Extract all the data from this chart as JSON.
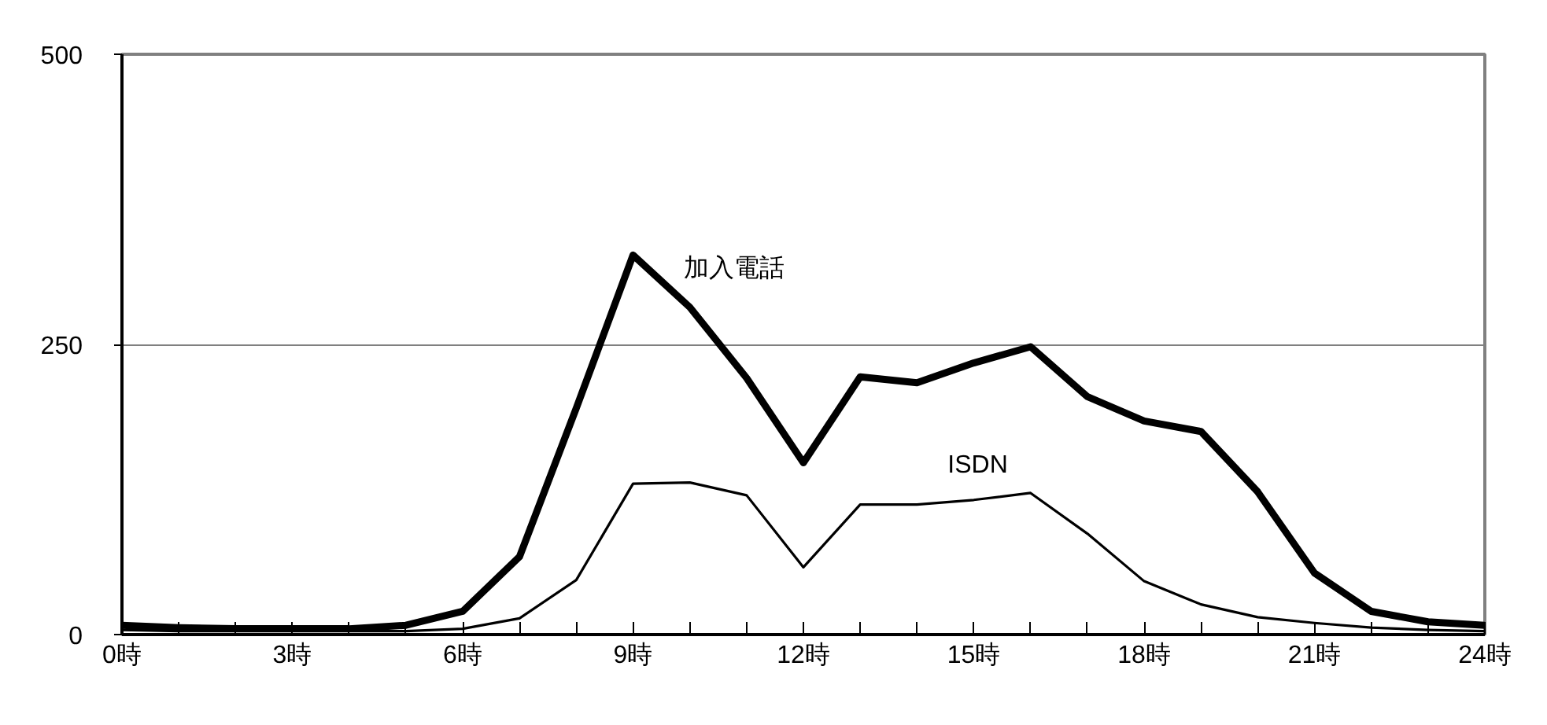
{
  "chart_data": {
    "type": "line",
    "x": [
      0,
      1,
      2,
      3,
      4,
      5,
      6,
      7,
      8,
      9,
      10,
      11,
      12,
      13,
      14,
      15,
      16,
      17,
      18,
      19,
      20,
      21,
      22,
      23,
      24
    ],
    "series": [
      {
        "name": "加入電話",
        "color": "#000000",
        "values": [
          8,
          6,
          5,
          5,
          5,
          8,
          20,
          67,
          195,
          327,
          282,
          221,
          148,
          222,
          217,
          234,
          248,
          205,
          184,
          175,
          123,
          53,
          20,
          11,
          8
        ]
      },
      {
        "name": "ISDN",
        "color": "#000000",
        "values": [
          4,
          3,
          3,
          3,
          3,
          3,
          5,
          14,
          47,
          130,
          131,
          120,
          58,
          112,
          112,
          116,
          122,
          87,
          46,
          26,
          15,
          10,
          6,
          4,
          3
        ]
      }
    ],
    "xlim": [
      0,
      24
    ],
    "xticks": [
      {
        "value": 0,
        "label": "0時"
      },
      {
        "value": 3,
        "label": "3時"
      },
      {
        "value": 6,
        "label": "6時"
      },
      {
        "value": 9,
        "label": "9時"
      },
      {
        "value": 12,
        "label": "12時"
      },
      {
        "value": 15,
        "label": "15時"
      },
      {
        "value": 18,
        "label": "18時"
      },
      {
        "value": 21,
        "label": "21時"
      },
      {
        "value": 24,
        "label": "24時"
      }
    ],
    "ylim": [
      0,
      500
    ],
    "yticks": [
      0,
      250,
      500
    ],
    "grid": "y",
    "marker": "none",
    "line_style": "solid"
  }
}
